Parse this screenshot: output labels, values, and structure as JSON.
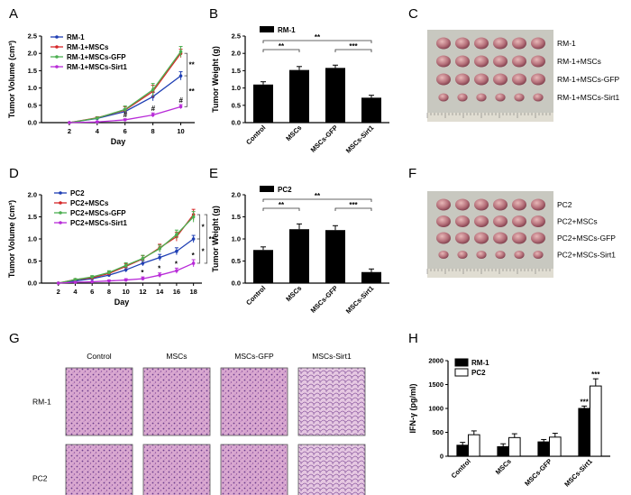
{
  "chart_data": [
    {
      "id": "A",
      "type": "line",
      "panel_label": "A",
      "xlabel": "Day",
      "ylabel": "Tumor Volume (cm³)",
      "x": [
        2,
        4,
        6,
        8,
        10
      ],
      "xlim": [
        0,
        11
      ],
      "xticks": [
        2,
        4,
        6,
        8,
        10
      ],
      "ylim": [
        0,
        2.5
      ],
      "yticks": [
        0.0,
        0.5,
        1.0,
        1.5,
        2.0,
        2.5
      ],
      "series": [
        {
          "name": "RM-1",
          "color": "#1f3fb4",
          "values": [
            0,
            0.12,
            0.32,
            0.75,
            1.35
          ],
          "err": [
            0,
            0.03,
            0.08,
            0.12,
            0.12
          ]
        },
        {
          "name": "RM-1+MSCs",
          "color": "#d62728",
          "values": [
            0,
            0.14,
            0.36,
            0.9,
            2.0
          ],
          "err": [
            0,
            0.03,
            0.1,
            0.18,
            0.12
          ]
        },
        {
          "name": "RM-1+MSCs-GFP",
          "color": "#4caf50",
          "values": [
            0,
            0.13,
            0.38,
            0.95,
            2.05
          ],
          "err": [
            0,
            0.03,
            0.1,
            0.18,
            0.15
          ]
        },
        {
          "name": "RM-1+MSCs-Sirt1",
          "color": "#b82bd8",
          "values": [
            0,
            0.02,
            0.08,
            0.22,
            0.46
          ],
          "err": [
            0,
            0.02,
            0.03,
            0.06,
            0.06
          ]
        }
      ],
      "brackets": [
        {
          "from": "RM-1+MSCs",
          "to": "RM-1",
          "label": "**"
        },
        {
          "from": "RM-1",
          "to": "RM-1+MSCs-Sirt1",
          "label": "**"
        }
      ],
      "annotations": [
        "#",
        "#",
        "#"
      ]
    },
    {
      "id": "B",
      "type": "bar",
      "panel_label": "B",
      "ylabel": "Tumor Weight (g)",
      "legend": "RM-1",
      "categories": [
        "Control",
        "MSCs",
        "MSCs-GFP",
        "MSCs-Sirt1"
      ],
      "values": [
        1.1,
        1.52,
        1.58,
        0.72
      ],
      "err": [
        0.08,
        0.1,
        0.08,
        0.07
      ],
      "ylim": [
        0,
        2.5
      ],
      "yticks": [
        0.0,
        0.5,
        1.0,
        1.5,
        2.0,
        2.5
      ],
      "brackets": [
        {
          "from": 0,
          "to": 1,
          "label": "**"
        },
        {
          "from": 0,
          "to": 3,
          "label": "**"
        },
        {
          "from": 2,
          "to": 3,
          "label": "***"
        }
      ]
    },
    {
      "id": "D",
      "type": "line",
      "panel_label": "D",
      "xlabel": "Day",
      "ylabel": "Tumor Volume (cm³)",
      "x": [
        2,
        4,
        6,
        8,
        10,
        12,
        14,
        16,
        18
      ],
      "xlim": [
        0,
        19
      ],
      "xticks": [
        2,
        4,
        6,
        8,
        10,
        12,
        14,
        16,
        18
      ],
      "ylim": [
        0,
        2.0
      ],
      "yticks": [
        0.0,
        0.5,
        1.0,
        1.5,
        2.0
      ],
      "series": [
        {
          "name": "PC2",
          "color": "#1f3fb4",
          "values": [
            0,
            0.05,
            0.1,
            0.18,
            0.3,
            0.45,
            0.58,
            0.72,
            1.0
          ],
          "err": [
            0,
            0.02,
            0.03,
            0.04,
            0.05,
            0.06,
            0.07,
            0.08,
            0.08
          ]
        },
        {
          "name": "PC2+MSCs",
          "color": "#d62728",
          "values": [
            0,
            0.08,
            0.12,
            0.22,
            0.38,
            0.55,
            0.8,
            1.05,
            1.55
          ],
          "err": [
            0,
            0.02,
            0.03,
            0.04,
            0.06,
            0.07,
            0.08,
            0.1,
            0.12
          ]
        },
        {
          "name": "PC2+MSCs-GFP",
          "color": "#4caf50",
          "values": [
            0,
            0.08,
            0.14,
            0.24,
            0.4,
            0.56,
            0.78,
            1.1,
            1.5
          ],
          "err": [
            0,
            0.02,
            0.03,
            0.04,
            0.06,
            0.07,
            0.08,
            0.1,
            0.12
          ]
        },
        {
          "name": "PC2+MSCs-Sirt1",
          "color": "#b82bd8",
          "values": [
            0,
            0.02,
            0.03,
            0.05,
            0.07,
            0.1,
            0.18,
            0.28,
            0.45
          ],
          "err": [
            0,
            0.01,
            0.01,
            0.02,
            0.03,
            0.04,
            0.05,
            0.06,
            0.08
          ]
        }
      ],
      "brackets": [
        {
          "from": "PC2+MSCs",
          "to": "PC2",
          "label": "*"
        },
        {
          "from": "PC2",
          "to": "PC2+MSCs-Sirt1",
          "label": "*"
        },
        {
          "from": "PC2+MSCs",
          "to": "PC2+MSCs-Sirt1",
          "label": "**"
        }
      ],
      "annotations": [
        "*",
        "*",
        "*",
        "*"
      ]
    },
    {
      "id": "E",
      "type": "bar",
      "panel_label": "E",
      "ylabel": "Tumor Weight (g)",
      "legend": "PC2",
      "categories": [
        "Control",
        "MSCs",
        "MSCs-GFP",
        "MSCs-Sirt1"
      ],
      "values": [
        0.75,
        1.22,
        1.2,
        0.25
      ],
      "err": [
        0.07,
        0.12,
        0.1,
        0.07
      ],
      "ylim": [
        0,
        2.0
      ],
      "yticks": [
        0.0,
        0.5,
        1.0,
        1.5,
        2.0
      ],
      "brackets": [
        {
          "from": 0,
          "to": 1,
          "label": "**"
        },
        {
          "from": 0,
          "to": 3,
          "label": "**"
        },
        {
          "from": 2,
          "to": 3,
          "label": "***"
        }
      ]
    },
    {
      "id": "H",
      "type": "bar",
      "panel_label": "H",
      "ylabel": "IFN-γ (pg/ml)",
      "categories": [
        "Control",
        "MSCs",
        "MSCs-GFP",
        "MSCs-Sirt1"
      ],
      "series": [
        {
          "name": "RM-1",
          "color": "#000000",
          "values": [
            230,
            200,
            300,
            1000
          ],
          "err": [
            60,
            60,
            50,
            50
          ]
        },
        {
          "name": "PC2",
          "color": "#ffffff",
          "values": [
            450,
            390,
            400,
            1470
          ],
          "err": [
            80,
            80,
            80,
            150
          ]
        }
      ],
      "ylim": [
        0,
        2000
      ],
      "yticks": [
        0,
        500,
        1000,
        1500,
        2000
      ],
      "annotations": [
        "***",
        "***"
      ]
    }
  ],
  "photo_panels": {
    "C": {
      "panel_label": "C",
      "rows": [
        "RM-1",
        "RM-1+MSCs",
        "RM-1+MSCs-GFP",
        "RM-1+MSCs-Sirt1"
      ]
    },
    "F": {
      "panel_label": "F",
      "rows": [
        "PC2",
        "PC2+MSCs",
        "PC2+MSCs-GFP",
        "PC2+MSCs-Sirt1"
      ]
    },
    "G": {
      "panel_label": "G",
      "columns": [
        "Control",
        "MSCs",
        "MSCs-GFP",
        "MSCs-Sirt1"
      ],
      "rows": [
        "RM-1",
        "PC2"
      ]
    }
  }
}
